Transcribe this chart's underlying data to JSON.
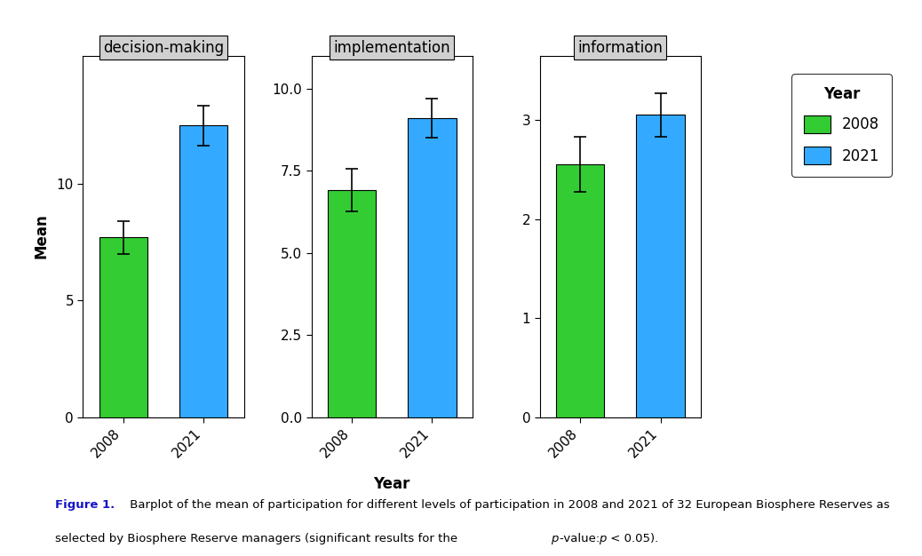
{
  "panels": [
    {
      "title": "decision-making",
      "categories": [
        "2008",
        "2021"
      ],
      "values": [
        7.7,
        12.5
      ],
      "errors": [
        0.7,
        0.85
      ],
      "ylim": [
        0,
        15.5
      ],
      "yticks": [
        0,
        5,
        10
      ],
      "ytick_labels": [
        "0",
        "5",
        "10"
      ]
    },
    {
      "title": "implementation",
      "categories": [
        "2008",
        "2021"
      ],
      "values": [
        6.9,
        9.1
      ],
      "errors": [
        0.65,
        0.6
      ],
      "ylim": [
        0,
        11.0
      ],
      "yticks": [
        0.0,
        2.5,
        5.0,
        7.5,
        10.0
      ],
      "ytick_labels": [
        "0.0",
        "2.5",
        "5.0",
        "7.5",
        "10.0"
      ]
    },
    {
      "title": "information",
      "categories": [
        "2008",
        "2021"
      ],
      "values": [
        2.55,
        3.05
      ],
      "errors": [
        0.28,
        0.22
      ],
      "ylim": [
        0,
        3.65
      ],
      "yticks": [
        0,
        1,
        2,
        3
      ],
      "ytick_labels": [
        "0",
        "1",
        "2",
        "3"
      ]
    }
  ],
  "bar_colors": [
    "#33cc33",
    "#33aaff"
  ],
  "bar_edge_color": "#000000",
  "bar_width": 0.6,
  "xlabel": "Year",
  "ylabel": "Mean",
  "legend_title": "Year",
  "legend_labels": [
    "2008",
    "2021"
  ],
  "title_bg_color": "#d0d0d0",
  "title_fontsize": 12,
  "axis_fontsize": 12,
  "tick_fontsize": 11,
  "figsize": [
    10.38,
    6.26
  ],
  "dpi": 100
}
